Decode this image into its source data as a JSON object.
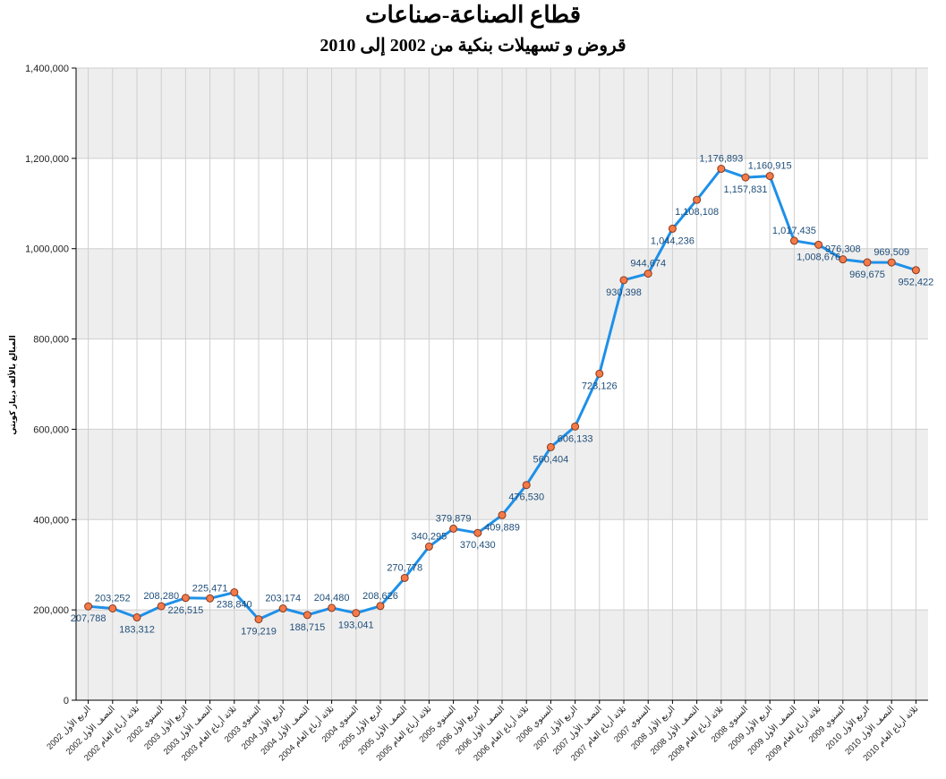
{
  "chart_data": {
    "type": "line",
    "title": "قطاع الصناعة-صناعات",
    "subtitle": "قروض و تسهيلات بنكية من 2002 إلى 2010",
    "ylabel": "المبالغ بالألف دينار كويتي",
    "xlabel": "",
    "ylim": [
      0,
      1400000
    ],
    "yticks": [
      "0",
      "200,000",
      "400,000",
      "600,000",
      "800,000",
      "1,000,000",
      "1,200,000",
      "1,400,000"
    ],
    "grid": true,
    "legend": "none",
    "categories": [
      "الربع الأول 2002",
      "النصف الأول 2002",
      "ثلاثة أرباع العام 2002",
      "السنوي 2002",
      "الربع الأول 2003",
      "النصف الأول 2003",
      "ثلاثة أرباع العام 2003",
      "السنوي 2003",
      "الربع الأول 2004",
      "النصف الأول 2004",
      "ثلاثة أرباع العام 2004",
      "السنوي 2004",
      "الربع الأول 2005",
      "النصف الأول 2005",
      "ثلاثة أرباع العام 2005",
      "السنوي 2005",
      "الربع الأول 2006",
      "النصف الأول 2006",
      "ثلاثة أرباع العام 2006",
      "السنوي 2006",
      "الربع الأول 2007",
      "النصف الأول 2007",
      "ثلاثة أرباع العام 2007",
      "السنوي 2007",
      "الربع الأول 2008",
      "النصف الأول 2008",
      "ثلاثة أرباع العام 2008",
      "السنوي 2008",
      "الربع الأول 2009",
      "النصف الأول 2009",
      "ثلاثة أرباع العام 2009",
      "السنوي 2009",
      "الربع الأول 2010",
      "النصف الأول 2010",
      "ثلاثة أرباع العام 2010"
    ],
    "values": [
      207788,
      203252,
      183312,
      208280,
      226515,
      225471,
      238840,
      179219,
      203174,
      188715,
      204480,
      193041,
      208626,
      270778,
      340295,
      379879,
      370430,
      409889,
      476530,
      560404,
      606133,
      723126,
      930398,
      944674,
      1044236,
      1108108,
      1176893,
      1157831,
      1160915,
      1017435,
      1008676,
      976308,
      969675,
      969509,
      952422
    ],
    "value_labels": [
      "207,788",
      "203,252",
      "183,312",
      "208,280",
      "226,515",
      "225,471",
      "238,840",
      "179,219",
      "203,174",
      "188,715",
      "204,480",
      "193,041",
      "208,626",
      "270,778",
      "340,295",
      "379,879",
      "370,430",
      "409,889",
      "476,530",
      "560,404",
      "606,133",
      "723,126",
      "930,398",
      "944,674",
      "1,044,236",
      "1,108,108",
      "1,176,893",
      "1,157,831",
      "1,160,915",
      "1,017,435",
      "1,008,676",
      "976,308",
      "969,675",
      "969,509",
      "952,422"
    ],
    "label_position": [
      "below",
      "above",
      "below",
      "above",
      "below",
      "above",
      "below",
      "below",
      "above",
      "below",
      "above",
      "below",
      "above",
      "above",
      "above",
      "above",
      "below",
      "below",
      "below",
      "below",
      "below",
      "below",
      "below",
      "above",
      "below",
      "below",
      "above",
      "below",
      "above",
      "above",
      "below",
      "above",
      "below",
      "above",
      "below"
    ],
    "colors": {
      "line": "#1e90e8",
      "marker_fill": "#f47a4a",
      "marker_stroke": "#8b3a1a",
      "band": "#eeeeee",
      "grid": "#cfcfcf",
      "label": "#1f4e79"
    }
  }
}
